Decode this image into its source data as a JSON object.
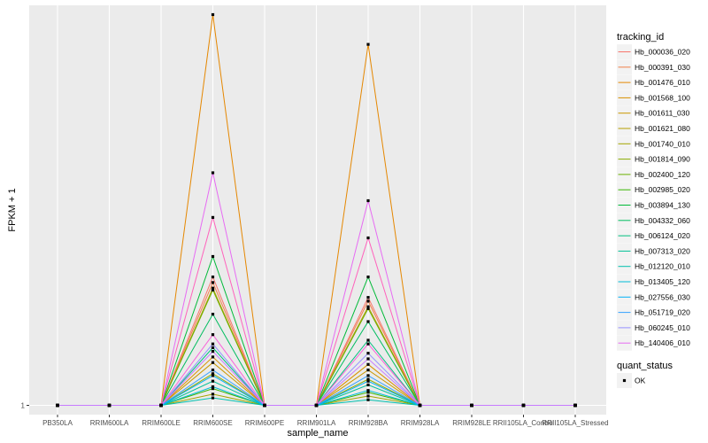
{
  "chart_data": {
    "type": "line",
    "xlabel": "sample_name",
    "ylabel": "FPKM + 1",
    "y_tick_labels": [
      "1"
    ],
    "y_axis_values": [
      1
    ],
    "ylim": [
      0.5,
      22.5
    ],
    "categories": [
      "PB350LA",
      "RRIM600LA",
      "RRIM600LE",
      "RRIM600SE",
      "RRIM600PE",
      "RRIM901LA",
      "RRIM928BA",
      "RRIM928LA",
      "RRIM928LE",
      "RRII105LA_Control",
      "RRII105LA_Stressed"
    ],
    "grid": true,
    "background": "#ebebeb",
    "legend_position": "right",
    "legend": {
      "tracking_id_title": "tracking_id",
      "quant_status_title": "quant_status",
      "quant_status_items": [
        "OK"
      ]
    },
    "series": [
      {
        "name": "Hb_000036_020",
        "color": "#F8766D",
        "values": [
          1,
          1,
          1,
          7.9,
          1,
          1,
          6.8,
          1,
          1,
          1,
          1
        ]
      },
      {
        "name": "Hb_000391_030",
        "color": "#F07F49",
        "values": [
          1,
          1,
          1,
          7.6,
          1,
          1,
          6.6,
          1,
          1,
          1,
          1
        ]
      },
      {
        "name": "Hb_001476_010",
        "color": "#E58700",
        "values": [
          1,
          1,
          1,
          22.0,
          1,
          1,
          20.4,
          1,
          1,
          1,
          1
        ]
      },
      {
        "name": "Hb_001568_100",
        "color": "#D89000",
        "values": [
          1,
          1,
          1,
          3.6,
          1,
          1,
          3.2,
          1,
          1,
          1,
          1
        ]
      },
      {
        "name": "Hb_001611_030",
        "color": "#C99800",
        "values": [
          1,
          1,
          1,
          3.3,
          1,
          1,
          2.9,
          1,
          1,
          1,
          1
        ]
      },
      {
        "name": "Hb_001621_080",
        "color": "#B79F00",
        "values": [
          1,
          1,
          1,
          7.3,
          1,
          1,
          6.3,
          1,
          1,
          1,
          1
        ]
      },
      {
        "name": "Hb_001740_010",
        "color": "#A3A500",
        "values": [
          1,
          1,
          1,
          1.6,
          1,
          1,
          1.5,
          1,
          1,
          1,
          1
        ]
      },
      {
        "name": "Hb_001814_090",
        "color": "#8AAB00",
        "values": [
          1,
          1,
          1,
          2.7,
          1,
          1,
          2.4,
          1,
          1,
          1,
          1
        ]
      },
      {
        "name": "Hb_002400_120",
        "color": "#6BB100",
        "values": [
          1,
          1,
          1,
          7.2,
          1,
          1,
          6.2,
          1,
          1,
          1,
          1
        ]
      },
      {
        "name": "Hb_002985_020",
        "color": "#39B600",
        "values": [
          1,
          1,
          1,
          1.9,
          1,
          1,
          1.7,
          1,
          1,
          1,
          1
        ]
      },
      {
        "name": "Hb_003894_130",
        "color": "#00BA38",
        "values": [
          1,
          1,
          1,
          9.0,
          1,
          1,
          7.9,
          1,
          1,
          1,
          1
        ]
      },
      {
        "name": "Hb_004332_060",
        "color": "#00BD5F",
        "values": [
          1,
          1,
          1,
          5.9,
          1,
          1,
          5.5,
          1,
          1,
          1,
          1
        ]
      },
      {
        "name": "Hb_006124_020",
        "color": "#00BF7D",
        "values": [
          1,
          1,
          1,
          4.1,
          1,
          1,
          4.5,
          1,
          1,
          1,
          1
        ]
      },
      {
        "name": "Hb_007313_020",
        "color": "#00C097",
        "values": [
          1,
          1,
          1,
          2.3,
          1,
          1,
          2.1,
          1,
          1,
          1,
          1
        ]
      },
      {
        "name": "Hb_012120_010",
        "color": "#00C0AF",
        "values": [
          1,
          1,
          1,
          1.4,
          1,
          1,
          1.3,
          1,
          1,
          1,
          1
        ]
      },
      {
        "name": "Hb_013405_120",
        "color": "#00BCD8",
        "values": [
          1,
          1,
          1,
          2.0,
          1,
          1,
          1.8,
          1,
          1,
          1,
          1
        ]
      },
      {
        "name": "Hb_027556_030",
        "color": "#00B0F6",
        "values": [
          1,
          1,
          1,
          2.6,
          1,
          1,
          2.3,
          1,
          1,
          1,
          1
        ]
      },
      {
        "name": "Hb_051719_020",
        "color": "#35A2FF",
        "values": [
          1,
          1,
          1,
          2.9,
          1,
          1,
          2.6,
          1,
          1,
          1,
          1
        ]
      },
      {
        "name": "Hb_060245_010",
        "color": "#9590FF",
        "values": [
          1,
          1,
          1,
          4.3,
          1,
          1,
          3.8,
          1,
          1,
          1,
          1
        ]
      },
      {
        "name": "Hb_140406_010",
        "color": "#E76BF3",
        "values": [
          1,
          1,
          1,
          13.5,
          1,
          1,
          12.0,
          1,
          1,
          1,
          1
        ]
      },
      {
        "name": "",
        "color": "#FF62BC",
        "values": [
          1,
          1,
          1,
          11.1,
          1,
          1,
          10.0,
          1,
          1,
          1,
          1
        ]
      },
      {
        "name": "",
        "color": "#FA62DB",
        "values": [
          1,
          1,
          1,
          4.8,
          1,
          1,
          4.3,
          1,
          1,
          1,
          1
        ]
      },
      {
        "name": "",
        "color": "#C77CFF",
        "values": [
          1,
          1,
          1,
          3.9,
          1,
          1,
          3.5,
          1,
          1,
          1,
          1
        ]
      }
    ]
  }
}
